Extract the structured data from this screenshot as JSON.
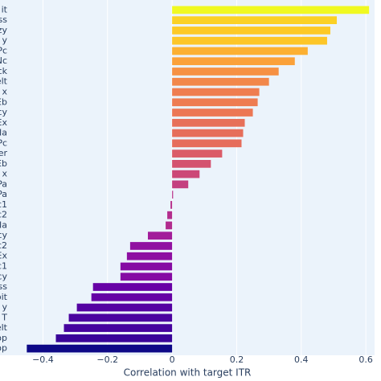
{
  "chart_data": {
    "type": "barh",
    "xlabel": "Correlation with target ITR",
    "categories": [
      "it",
      "ss",
      "zy",
      "y",
      "Pc",
      "Nc",
      "ck",
      "elt",
      "x",
      "Eb",
      "cy",
      "Ex",
      "Na",
      "Pc",
      "er",
      "Eb",
      "x",
      "Pa",
      "Pa",
      "c1",
      "c2",
      "Na",
      "cy",
      "c2",
      "Ex",
      "c1",
      "cy",
      "ss",
      "oit",
      "y",
      "T",
      "elt",
      "op",
      "op"
    ],
    "values": [
      0.61,
      0.51,
      0.49,
      0.48,
      0.42,
      0.38,
      0.33,
      0.3,
      0.27,
      0.265,
      0.25,
      0.225,
      0.22,
      0.215,
      0.155,
      0.12,
      0.085,
      0.05,
      0.003,
      -0.005,
      -0.015,
      -0.02,
      -0.075,
      -0.13,
      -0.14,
      -0.16,
      -0.16,
      -0.245,
      -0.25,
      -0.295,
      -0.32,
      -0.335,
      -0.36,
      -0.45
    ],
    "colorscale": [
      "#0d0887",
      "#46039f",
      "#7201a8",
      "#9c179e",
      "#bd3786",
      "#d8576b",
      "#ed7953",
      "#fb9f3a",
      "#fdca26",
      "#f0f921"
    ],
    "xlim": [
      -0.533,
      0.627
    ],
    "xticks": [
      {
        "value": -0.4,
        "label": "−0.4"
      },
      {
        "value": -0.2,
        "label": "−0.2"
      },
      0,
      0.2,
      0.4,
      0.6
    ],
    "grid": true
  }
}
